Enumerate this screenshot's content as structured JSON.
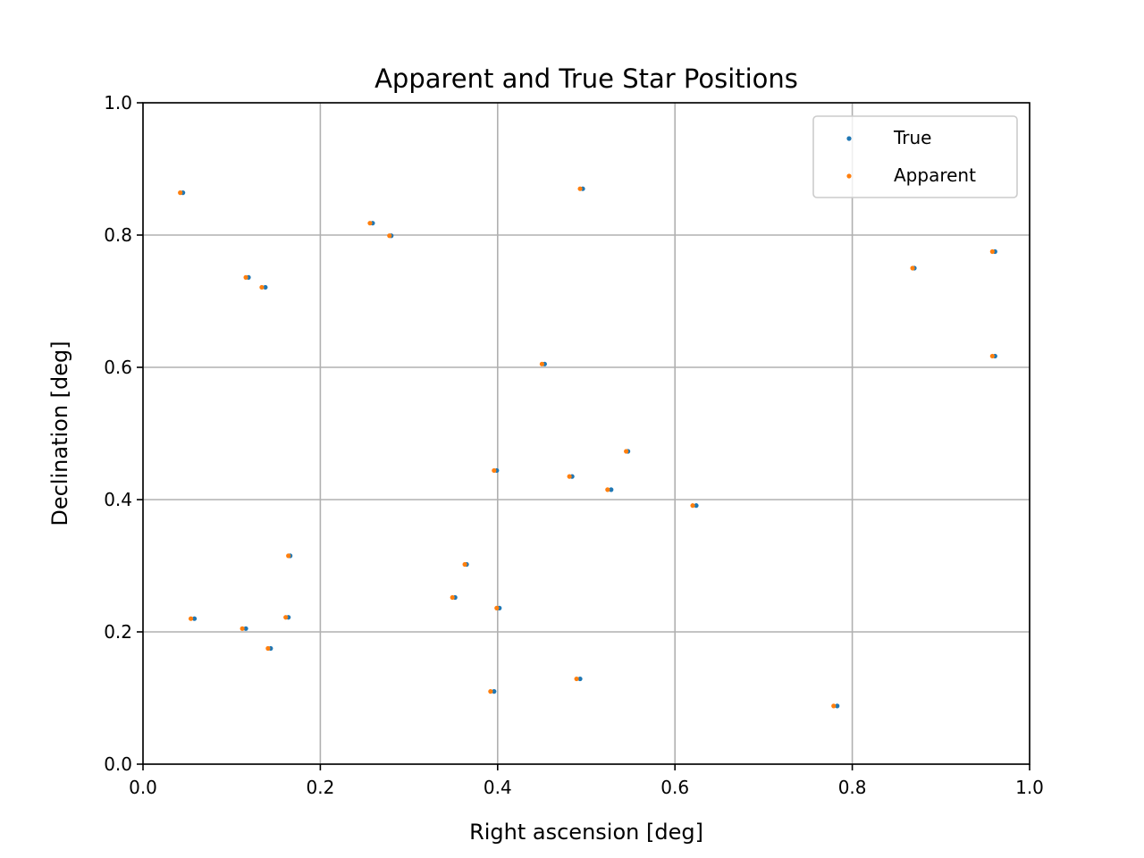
{
  "chart_data": {
    "type": "scatter",
    "title": "Apparent and True Star Positions",
    "xlabel": "Right ascension [deg]",
    "ylabel": "Declination [deg]",
    "xlim": [
      0.0,
      1.0
    ],
    "ylim": [
      0.0,
      1.0
    ],
    "xticks": [
      "0.0",
      "0.2",
      "0.4",
      "0.6",
      "0.8",
      "1.0"
    ],
    "yticks": [
      "0.0",
      "0.2",
      "0.4",
      "0.6",
      "0.8",
      "1.0"
    ],
    "grid": true,
    "legend_position": "top-right",
    "series": [
      {
        "name": "True",
        "color": "#1f77b4",
        "points": [
          [
            0.045,
            0.864
          ],
          [
            0.496,
            0.87
          ],
          [
            0.259,
            0.818
          ],
          [
            0.28,
            0.799
          ],
          [
            0.119,
            0.736
          ],
          [
            0.138,
            0.721
          ],
          [
            0.87,
            0.75
          ],
          [
            0.961,
            0.775
          ],
          [
            0.453,
            0.605
          ],
          [
            0.961,
            0.617
          ],
          [
            0.547,
            0.473
          ],
          [
            0.399,
            0.444
          ],
          [
            0.484,
            0.435
          ],
          [
            0.528,
            0.415
          ],
          [
            0.624,
            0.391
          ],
          [
            0.166,
            0.315
          ],
          [
            0.365,
            0.302
          ],
          [
            0.058,
            0.22
          ],
          [
            0.116,
            0.205
          ],
          [
            0.164,
            0.222
          ],
          [
            0.352,
            0.252
          ],
          [
            0.402,
            0.236
          ],
          [
            0.144,
            0.175
          ],
          [
            0.396,
            0.11
          ],
          [
            0.493,
            0.129
          ],
          [
            0.783,
            0.088
          ]
        ]
      },
      {
        "name": "Apparent",
        "color": "#ff7f0e",
        "points": [
          [
            0.042,
            0.864
          ],
          [
            0.493,
            0.87
          ],
          [
            0.256,
            0.818
          ],
          [
            0.278,
            0.799
          ],
          [
            0.116,
            0.736
          ],
          [
            0.134,
            0.721
          ],
          [
            0.868,
            0.75
          ],
          [
            0.958,
            0.775
          ],
          [
            0.45,
            0.605
          ],
          [
            0.958,
            0.617
          ],
          [
            0.545,
            0.473
          ],
          [
            0.396,
            0.444
          ],
          [
            0.481,
            0.435
          ],
          [
            0.524,
            0.415
          ],
          [
            0.62,
            0.391
          ],
          [
            0.164,
            0.315
          ],
          [
            0.363,
            0.302
          ],
          [
            0.054,
            0.22
          ],
          [
            0.112,
            0.205
          ],
          [
            0.161,
            0.222
          ],
          [
            0.349,
            0.252
          ],
          [
            0.399,
            0.236
          ],
          [
            0.141,
            0.175
          ],
          [
            0.392,
            0.11
          ],
          [
            0.489,
            0.129
          ],
          [
            0.779,
            0.088
          ]
        ]
      }
    ]
  }
}
